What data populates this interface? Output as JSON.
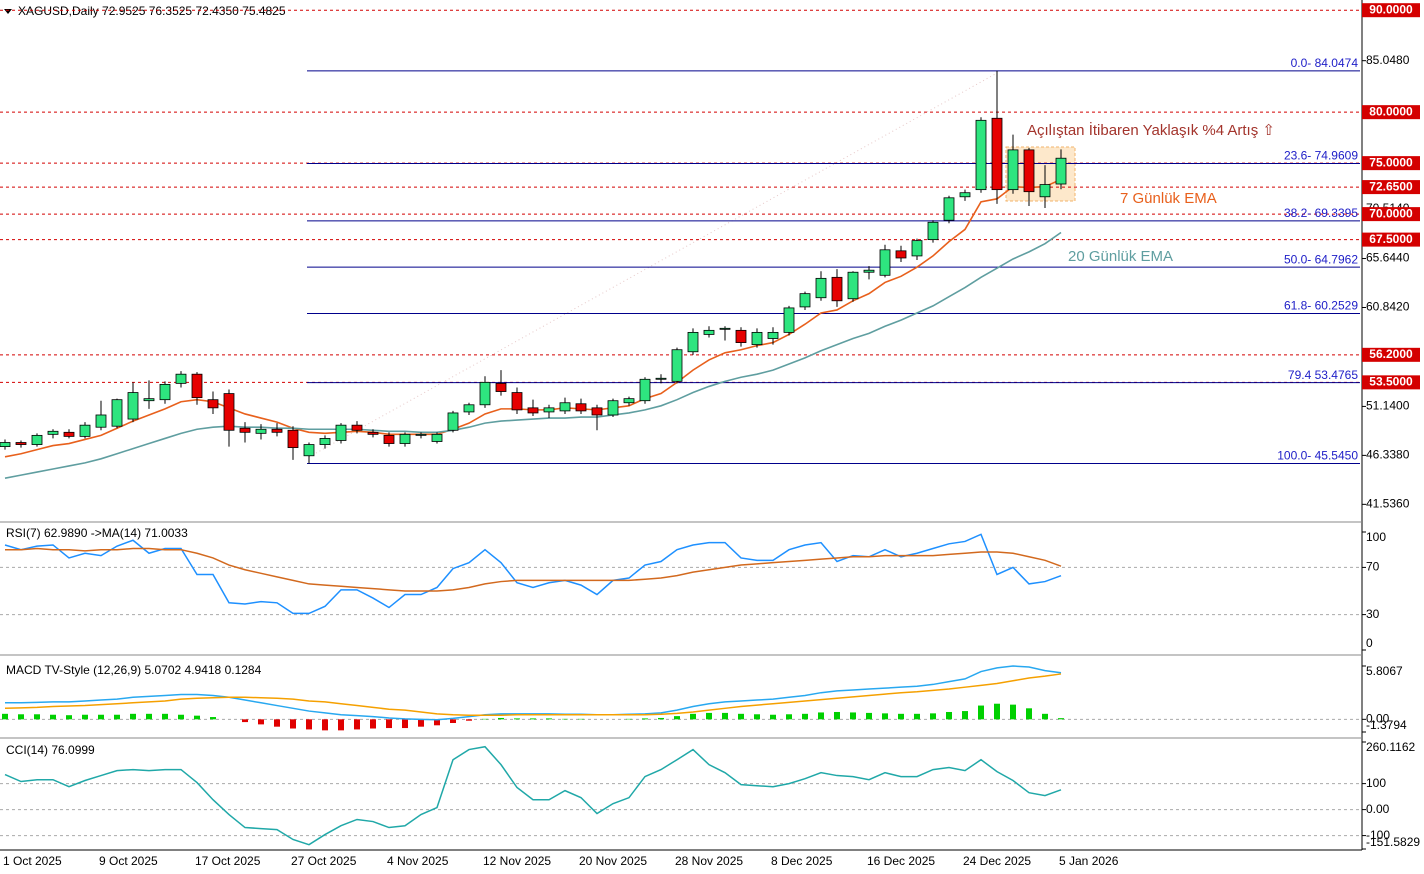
{
  "chart_data": [
    {
      "type": "candlestick",
      "title": "XAGUSD,Daily  72.9525 76.3525 72.4350 75.4825",
      "categories": [
        "1 Oct 2025",
        null,
        null,
        null,
        null,
        null,
        "9 Oct 2025",
        null,
        null,
        null,
        null,
        null,
        "17 Oct 2025",
        null,
        null,
        null,
        null,
        null,
        "27 Oct 2025",
        null,
        null,
        null,
        null,
        null,
        "4 Nov 2025",
        null,
        null,
        null,
        null,
        null,
        "12 Nov 2025",
        null,
        null,
        null,
        null,
        null,
        "20 Nov 2025",
        null,
        null,
        null,
        null,
        null,
        "28 Nov 2025",
        null,
        null,
        null,
        null,
        null,
        "8 Dec 2025",
        null,
        null,
        null,
        null,
        null,
        "16 Dec 2025",
        null,
        null,
        null,
        null,
        null,
        "24 Dec 2025",
        null,
        null,
        null,
        null,
        null,
        "5 Jan 2026"
      ],
      "open": [
        47.2,
        47.6,
        47.4,
        48.4,
        48.6,
        48.2,
        49.1,
        49.2,
        49.9,
        51.7,
        51.8,
        53.4,
        54.3,
        51.8,
        52.4,
        49.0,
        48.5,
        48.9,
        48.8,
        46.3,
        47.4,
        47.8,
        49.3,
        48.6,
        48.3,
        47.5,
        48.3,
        47.7,
        48.8,
        50.6,
        51.3,
        53.4,
        52.5,
        51.0,
        50.6,
        50.7,
        51.4,
        51.0,
        50.3,
        51.5,
        51.7,
        53.8,
        53.6,
        56.5,
        58.2,
        58.7,
        58.6,
        57.2,
        57.8,
        58.4,
        60.9,
        61.8,
        63.8,
        61.7,
        64.3,
        64.0,
        66.4,
        65.9,
        67.5,
        69.4,
        71.7,
        72.4,
        79.4,
        72.4,
        76.3,
        71.7,
        72.9525
      ],
      "high": [
        47.9,
        47.8,
        48.5,
        48.9,
        48.9,
        49.6,
        51.7,
        51.9,
        53.5,
        53.7,
        53.6,
        54.6,
        54.5,
        52.6,
        52.8,
        49.6,
        49.4,
        49.5,
        49.2,
        47.6,
        48.3,
        49.5,
        49.7,
        48.9,
        48.6,
        48.6,
        48.6,
        48.6,
        50.7,
        51.5,
        54.1,
        54.7,
        53.0,
        51.8,
        51.3,
        52.0,
        51.9,
        51.3,
        51.9,
        52.1,
        54.0,
        54.3,
        56.9,
        58.8,
        59.0,
        59.0,
        58.9,
        58.8,
        58.9,
        61.0,
        62.4,
        64.4,
        64.6,
        64.4,
        64.9,
        67.0,
        66.9,
        67.6,
        69.4,
        71.8,
        72.4,
        79.5,
        84.0474,
        77.8,
        76.5,
        74.8,
        76.3525
      ],
      "low": [
        46.9,
        47.1,
        47.2,
        48.0,
        48.0,
        48.0,
        48.8,
        49.0,
        49.6,
        50.9,
        51.4,
        53.0,
        51.3,
        50.4,
        47.2,
        47.6,
        47.9,
        48.2,
        45.9,
        45.545,
        47.0,
        47.5,
        48.5,
        48.1,
        47.2,
        47.2,
        48.0,
        47.5,
        48.6,
        50.3,
        51.0,
        52.2,
        50.4,
        50.2,
        50.0,
        50.4,
        50.4,
        48.8,
        50.1,
        51.2,
        51.4,
        53.4,
        53.4,
        56.2,
        57.9,
        57.6,
        57.0,
        56.9,
        57.2,
        58.1,
        60.6,
        61.5,
        60.9,
        61.4,
        63.6,
        63.8,
        65.3,
        65.5,
        67.2,
        69.1,
        71.3,
        72.1,
        71.0,
        72.0,
        70.8,
        70.6,
        72.435
      ],
      "close": [
        47.6,
        47.4,
        48.3,
        48.7,
        48.2,
        49.3,
        50.3,
        51.8,
        52.5,
        51.9,
        53.3,
        54.3,
        52.0,
        51.0,
        48.8,
        48.6,
        48.9,
        48.6,
        47.1,
        47.4,
        48.0,
        49.3,
        48.8,
        48.4,
        47.5,
        48.4,
        48.4,
        48.4,
        50.5,
        51.3,
        53.5,
        52.6,
        50.8,
        50.5,
        51.0,
        51.5,
        50.7,
        50.3,
        51.7,
        51.9,
        53.8,
        53.9,
        56.7,
        58.4,
        58.6,
        58.8,
        57.4,
        58.4,
        58.4,
        60.8,
        62.2,
        63.7,
        61.5,
        64.3,
        64.5,
        66.5,
        65.7,
        67.4,
        69.2,
        71.6,
        72.1,
        79.2,
        72.4,
        76.3,
        72.2,
        72.9,
        75.4825
      ],
      "up_color": "#2ee57f",
      "down_color": "#e60000",
      "series": [
        {
          "name": "7 Günlük EMA",
          "color": "#e8601c",
          "values": [
            46.2,
            46.5,
            46.9,
            47.3,
            47.5,
            47.9,
            48.3,
            49.0,
            49.7,
            50.3,
            50.9,
            51.6,
            51.8,
            51.6,
            51.0,
            50.4,
            50.0,
            49.6,
            49.0,
            48.6,
            48.5,
            48.6,
            48.7,
            48.6,
            48.4,
            48.4,
            48.4,
            48.4,
            48.9,
            49.5,
            50.4,
            50.9,
            50.9,
            50.8,
            50.8,
            51.0,
            50.9,
            50.8,
            51.0,
            51.2,
            51.9,
            52.4,
            53.5,
            54.7,
            55.7,
            56.4,
            56.7,
            57.1,
            57.4,
            58.2,
            59.2,
            60.3,
            60.6,
            61.5,
            62.2,
            63.3,
            63.9,
            64.8,
            65.9,
            67.3,
            68.5,
            71.2,
            71.5,
            72.7,
            72.6,
            72.7,
            73.4
          ]
        },
        {
          "name": "20 Günlük EMA",
          "color": "#5f9ea0",
          "values": [
            44.1,
            44.4,
            44.7,
            45.0,
            45.3,
            45.6,
            46.0,
            46.5,
            47.0,
            47.5,
            48.0,
            48.5,
            48.9,
            49.1,
            49.2,
            49.1,
            49.1,
            49.0,
            49.0,
            48.9,
            48.9,
            48.9,
            48.9,
            48.8,
            48.7,
            48.7,
            48.6,
            48.6,
            48.8,
            49.1,
            49.5,
            49.7,
            49.8,
            49.9,
            50.0,
            50.0,
            50.1,
            50.1,
            50.3,
            50.5,
            50.8,
            51.2,
            51.8,
            52.5,
            53.1,
            53.6,
            54.0,
            54.3,
            54.7,
            55.3,
            55.9,
            56.6,
            57.2,
            57.8,
            58.3,
            59.0,
            59.6,
            60.3,
            61.0,
            61.9,
            62.8,
            63.8,
            64.7,
            65.6,
            66.3,
            67.1,
            68.2
          ]
        }
      ],
      "levels": [
        {
          "value": 90,
          "label": "90.0000"
        },
        {
          "value": 80,
          "label": "80.0000"
        },
        {
          "value": 75,
          "label": "75.0000"
        },
        {
          "value": 72.65,
          "label": "72.6500"
        },
        {
          "value": 70,
          "label": "70.0000"
        },
        {
          "value": 67.5,
          "label": "67.5000"
        },
        {
          "value": 56.2,
          "label": "56.2000"
        },
        {
          "value": 53.5,
          "label": "53.5000"
        }
      ],
      "level_color": "#d40000",
      "fib_levels": [
        {
          "value": 84.0474,
          "label": "0.0- 84.0474"
        },
        {
          "value": 74.9609,
          "label": "23.6- 74.9609"
        },
        {
          "value": 69.3395,
          "label": "38.2- 69.3395"
        },
        {
          "value": 64.7962,
          "label": "50.0- 64.7962"
        },
        {
          "value": 60.2529,
          "label": "61.8- 60.2529"
        },
        {
          "value": 53.4765,
          "label": "79.4 53.4765"
        },
        {
          "value": 45.545,
          "label": "100.0- 45.5450"
        }
      ],
      "fib_color": "#00008b",
      "fib_label_color": "#2020c8",
      "annotations": [
        {
          "text": "Açılıştan İtibaren Yaklaşık %4 Artış ⇧",
          "color": "#a3342c"
        }
      ],
      "ylim": [
        40,
        91
      ],
      "yticks": [
        {
          "value": 85.048,
          "label": "85.0480"
        },
        {
          "value": 70.514,
          "label": "70.5140"
        },
        {
          "value": 65.644,
          "label": "65.6440"
        },
        {
          "value": 60.842,
          "label": "60.8420"
        },
        {
          "value": 51.14,
          "label": "51.1400"
        },
        {
          "value": 46.338,
          "label": "46.3380"
        },
        {
          "value": 41.536,
          "label": "41.5360"
        }
      ],
      "grid": "none"
    },
    {
      "type": "line",
      "title": "RSI(7) 62.9890  ->MA(14) 71.0033",
      "series": [
        {
          "color": "#1e90ff",
          "values": [
            89,
            85,
            88,
            89,
            78,
            82,
            80,
            88,
            93,
            82,
            86,
            86,
            64,
            64,
            40,
            39,
            41,
            40,
            31,
            31,
            37,
            51,
            51,
            44,
            36,
            47,
            47,
            53,
            69,
            74,
            85,
            74,
            57,
            53,
            57,
            59,
            55,
            47,
            59,
            61,
            72,
            75,
            85,
            89,
            91,
            91,
            78,
            76,
            76,
            85,
            89,
            91,
            75,
            80,
            79,
            85,
            79,
            82,
            86,
            90,
            92,
            98,
            64,
            70,
            56,
            58,
            62.989
          ]
        },
        {
          "color": "#d2691e",
          "values": [
            85,
            85,
            86,
            85,
            85,
            84,
            85,
            85,
            86,
            86,
            85,
            85,
            82,
            78,
            72,
            68,
            65,
            62,
            59,
            56,
            55,
            54,
            53,
            52,
            51,
            50,
            50,
            50,
            51,
            53,
            56,
            58,
            59,
            59,
            59,
            59,
            59,
            59,
            59,
            59,
            60,
            61,
            63,
            66,
            68,
            70,
            72,
            73,
            74,
            75,
            76,
            77,
            78,
            79,
            79,
            80,
            80,
            80,
            80,
            81,
            82,
            83,
            83,
            82,
            79,
            76,
            71.0033
          ]
        }
      ],
      "ylim": [
        0,
        100
      ],
      "yticks": [
        100,
        70,
        30,
        0
      ],
      "grid": "inner"
    },
    {
      "type": "line",
      "title": "MACD TV-Style (12,26,9) 5.0702 4.9418 0.1284",
      "series": [
        {
          "style": "histogram",
          "color": "#00d000",
          "down_color": "#e00000",
          "values": [
            0.6,
            0.55,
            0.55,
            0.5,
            0.45,
            0.5,
            0.5,
            0.5,
            0.6,
            0.6,
            0.6,
            0.5,
            0.4,
            0.25,
            0.0,
            -0.3,
            -0.55,
            -0.8,
            -1.0,
            -1.1,
            -1.2,
            -1.2,
            -1.1,
            -1.0,
            -0.95,
            -0.95,
            -0.8,
            -0.65,
            -0.4,
            -0.15,
            0.05,
            0.15,
            0.1,
            0.1,
            0.1,
            0.05,
            0.05,
            0.0,
            0.0,
            0.05,
            0.1,
            0.15,
            0.35,
            0.6,
            0.7,
            0.7,
            0.6,
            0.55,
            0.5,
            0.55,
            0.6,
            0.75,
            0.8,
            0.75,
            0.7,
            0.65,
            0.6,
            0.6,
            0.65,
            0.8,
            0.9,
            1.5,
            1.7,
            1.6,
            1.2,
            0.6,
            0.1284
          ]
        },
        {
          "color": "#28a8f0",
          "values": [
            1.8,
            1.8,
            1.85,
            1.9,
            1.9,
            2.0,
            2.1,
            2.2,
            2.4,
            2.5,
            2.6,
            2.7,
            2.7,
            2.6,
            2.4,
            2.1,
            1.8,
            1.5,
            1.2,
            0.9,
            0.7,
            0.5,
            0.4,
            0.3,
            0.15,
            0.05,
            0.0,
            -0.05,
            0.1,
            0.3,
            0.5,
            0.6,
            0.6,
            0.6,
            0.6,
            0.55,
            0.55,
            0.5,
            0.5,
            0.55,
            0.6,
            0.7,
            1.0,
            1.4,
            1.7,
            1.9,
            2.0,
            2.1,
            2.2,
            2.4,
            2.6,
            2.9,
            3.1,
            3.2,
            3.3,
            3.4,
            3.5,
            3.6,
            3.8,
            4.1,
            4.4,
            5.2,
            5.6,
            5.8,
            5.7,
            5.3,
            5.0702
          ]
        },
        {
          "color": "#f5a000",
          "values": [
            1.2,
            1.25,
            1.3,
            1.4,
            1.45,
            1.5,
            1.6,
            1.7,
            1.8,
            1.9,
            2.0,
            2.2,
            2.3,
            2.35,
            2.4,
            2.4,
            2.35,
            2.3,
            2.2,
            2.0,
            1.9,
            1.7,
            1.5,
            1.3,
            1.1,
            1.0,
            0.8,
            0.6,
            0.5,
            0.45,
            0.45,
            0.45,
            0.5,
            0.5,
            0.5,
            0.5,
            0.5,
            0.5,
            0.5,
            0.5,
            0.5,
            0.55,
            0.65,
            0.8,
            1.0,
            1.2,
            1.4,
            1.55,
            1.7,
            1.85,
            2.0,
            2.15,
            2.3,
            2.45,
            2.6,
            2.75,
            2.9,
            3.0,
            3.15,
            3.3,
            3.5,
            3.7,
            3.9,
            4.2,
            4.5,
            4.7,
            4.9418
          ]
        }
      ],
      "ylim": [
        -1.3794,
        5.8067
      ],
      "yticks": [
        {
          "value": 5.8067,
          "label": "5.8067"
        },
        {
          "value": 0,
          "label": "0.00"
        },
        {
          "value": -1.3794,
          "label": "-1.3794"
        }
      ],
      "grid": "inner"
    },
    {
      "type": "line",
      "title": "CCI(14) 76.0999",
      "series": [
        {
          "color": "#20a8a8",
          "values": [
            135,
            108,
            115,
            115,
            88,
            112,
            131,
            150,
            154,
            150,
            154,
            154,
            104,
            38,
            -19,
            -69,
            -73,
            -77,
            -115,
            -135,
            -96,
            -62,
            -38,
            -46,
            -69,
            -62,
            -19,
            8,
            192,
            231,
            242,
            173,
            85,
            38,
            38,
            73,
            46,
            -15,
            23,
            46,
            127,
            154,
            192,
            231,
            173,
            142,
            96,
            92,
            88,
            100,
            119,
            142,
            131,
            127,
            115,
            142,
            127,
            127,
            154,
            162,
            150,
            192,
            146,
            112,
            65,
            54,
            76.0999
          ]
        }
      ],
      "ylim": [
        -151.5829,
        260.1162
      ],
      "yticks": [
        {
          "value": 260.1162,
          "label": "260.1162"
        },
        100,
        {
          "value": 0,
          "label": "0.00"
        },
        -100,
        {
          "value": -151.5829,
          "label": "-151.5829"
        }
      ],
      "grid": "inner"
    }
  ]
}
